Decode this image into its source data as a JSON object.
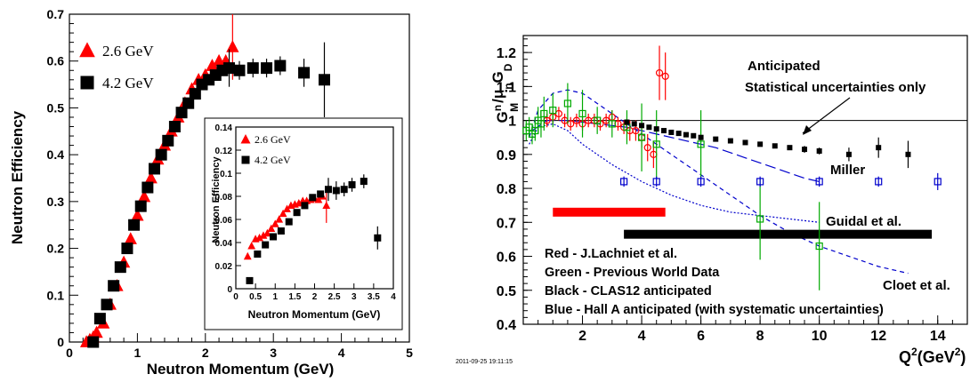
{
  "chart_data": [
    {
      "type": "scatter",
      "xlabel": "Neutron Momentum (GeV)",
      "ylabel": "Neutron Efficiency",
      "xlim": [
        0,
        5
      ],
      "ylim": [
        0,
        0.7
      ],
      "xticks": [
        "0",
        "1",
        "2",
        "3",
        "4",
        "5"
      ],
      "yticks": [
        "0",
        "0.1",
        "0.2",
        "0.3",
        "0.4",
        "0.5",
        "0.6",
        "0.7"
      ],
      "grid": false,
      "legend": "top-left",
      "series": [
        {
          "name": "2.6 GeV",
          "marker": "triangle",
          "color": "#ff0000",
          "x": [
            0.25,
            0.3,
            0.35,
            0.4,
            0.5,
            0.6,
            0.7,
            0.8,
            0.9,
            1.0,
            1.1,
            1.2,
            1.3,
            1.4,
            1.5,
            1.6,
            1.7,
            1.8,
            1.9,
            2.0,
            2.1,
            2.2,
            2.3,
            2.4
          ],
          "y": [
            0.0,
            0.005,
            0.01,
            0.02,
            0.04,
            0.08,
            0.12,
            0.17,
            0.22,
            0.27,
            0.31,
            0.35,
            0.39,
            0.42,
            0.45,
            0.48,
            0.51,
            0.54,
            0.56,
            0.57,
            0.59,
            0.6,
            0.6,
            0.63
          ],
          "err": [
            0,
            0,
            0,
            0,
            0,
            0,
            0,
            0,
            0,
            0,
            0,
            0,
            0,
            0,
            0,
            0,
            0,
            0,
            0,
            0,
            0,
            0,
            0,
            0.07
          ]
        },
        {
          "name": "4.2 GeV",
          "marker": "square",
          "color": "#000000",
          "x": [
            0.35,
            0.45,
            0.55,
            0.65,
            0.75,
            0.85,
            0.95,
            1.05,
            1.15,
            1.25,
            1.35,
            1.45,
            1.55,
            1.65,
            1.75,
            1.85,
            1.95,
            2.05,
            2.15,
            2.25,
            2.35,
            2.5,
            2.7,
            2.9,
            3.1,
            3.45,
            3.75
          ],
          "y": [
            0.0,
            0.05,
            0.08,
            0.12,
            0.16,
            0.2,
            0.25,
            0.29,
            0.33,
            0.37,
            0.4,
            0.43,
            0.46,
            0.49,
            0.51,
            0.53,
            0.55,
            0.56,
            0.57,
            0.58,
            0.585,
            0.58,
            0.585,
            0.585,
            0.59,
            0.575,
            0.56
          ],
          "err": [
            0,
            0,
            0,
            0,
            0,
            0,
            0,
            0,
            0,
            0,
            0,
            0,
            0,
            0,
            0,
            0,
            0,
            0,
            0,
            0,
            0.04,
            0.02,
            0.02,
            0.02,
            0.02,
            0.03,
            0.08
          ]
        }
      ],
      "inset": {
        "xlabel": "Neutron Momentum (GeV)",
        "ylabel": "Neutron Efficiency",
        "xlim": [
          0,
          4
        ],
        "ylim": [
          0,
          0.14
        ],
        "xticks": [
          "0",
          "0.5",
          "1",
          "1.5",
          "2",
          "2.5",
          "3",
          "3.5",
          "4"
        ],
        "yticks": [
          "0",
          "0.02",
          "0.04",
          "0.06",
          "0.08",
          "0.1",
          "0.12",
          "0.14"
        ],
        "series": [
          {
            "name": "2.6 GeV",
            "marker": "triangle",
            "color": "#ff0000",
            "x": [
              0.3,
              0.4,
              0.5,
              0.6,
              0.7,
              0.8,
              0.9,
              1.0,
              1.1,
              1.2,
              1.3,
              1.4,
              1.5,
              1.6,
              1.7,
              1.8,
              1.9,
              2.0,
              2.1,
              2.2,
              2.3
            ],
            "y": [
              0.028,
              0.037,
              0.043,
              0.044,
              0.046,
              0.048,
              0.052,
              0.056,
              0.06,
              0.065,
              0.069,
              0.072,
              0.073,
              0.074,
              0.076,
              0.076,
              0.077,
              0.078,
              0.077,
              0.08,
              0.072
            ],
            "err": [
              0,
              0,
              0,
              0,
              0,
              0,
              0,
              0,
              0,
              0,
              0,
              0,
              0,
              0,
              0,
              0,
              0,
              0,
              0,
              0,
              0.015
            ]
          },
          {
            "name": "4.2 GeV",
            "marker": "square",
            "color": "#000000",
            "x": [
              0.35,
              0.55,
              0.75,
              0.95,
              1.15,
              1.35,
              1.55,
              1.75,
              1.95,
              2.15,
              2.35,
              2.55,
              2.75,
              2.95,
              3.25,
              3.6
            ],
            "y": [
              0.007,
              0.03,
              0.038,
              0.045,
              0.05,
              0.058,
              0.066,
              0.072,
              0.079,
              0.082,
              0.086,
              0.085,
              0.086,
              0.09,
              0.093,
              0.044
            ],
            "err": [
              0,
              0,
              0,
              0,
              0,
              0,
              0,
              0,
              0,
              0,
              0.01,
              0.008,
              0.006,
              0.006,
              0.006,
              0.01
            ]
          }
        ]
      }
    },
    {
      "type": "scatter",
      "ylabel": "G",
      "ylabel_sup": "n",
      "ylabel_sub": "M",
      "ylabel_tail": "/μ",
      "ylabel_tail_sub": "n",
      "ylabel_end": "G",
      "ylabel_end_sub": "D",
      "xlabel": "Q",
      "xlabel_sup": "2",
      "xlabel_tail": "(GeV",
      "xlabel_tail_sup": "2",
      "xlabel_end": ")",
      "xlim": [
        0,
        15
      ],
      "ylim": [
        0.4,
        1.25
      ],
      "xticks": [
        "2",
        "4",
        "6",
        "8",
        "10",
        "12",
        "14"
      ],
      "yticks": [
        "0.4",
        "0.5",
        "0.6",
        "0.7",
        "0.8",
        "0.9",
        "1",
        "1.1",
        "1.2"
      ],
      "grid": false,
      "reference_line_y": 1.0,
      "annotations": {
        "anticipated": "Anticipated",
        "stat_only": "Statistical uncertainties only",
        "miller": "Miller",
        "guidal": "Guidal et al.",
        "cloet": "Cloet et al."
      },
      "legend_text": [
        "Red - J.Lachniet et al.",
        "Green - Previous World Data",
        "Black - CLAS12 anticipated",
        "Blue - Hall A anticipated (with systematic uncertainties)"
      ],
      "bands": [
        {
          "color": "#ff0000",
          "x": [
            1.0,
            4.8
          ],
          "y": 0.73
        },
        {
          "color": "#000000",
          "x": [
            3.4,
            13.8
          ],
          "y": 0.665
        }
      ],
      "series": [
        {
          "name": "Red - J.Lachniet et al.",
          "marker": "circle-open",
          "color": "#ff0000",
          "x": [
            0.8,
            1.0,
            1.2,
            1.4,
            1.6,
            1.8,
            2.0,
            2.2,
            2.4,
            2.6,
            2.8,
            3.0,
            3.2,
            3.4,
            3.6,
            3.8,
            4.0,
            4.2,
            4.4,
            4.6,
            4.8
          ],
          "y": [
            1.0,
            1.01,
            1.02,
            1.0,
            0.99,
            1.0,
            0.99,
            1.0,
            1.0,
            0.99,
            1.0,
            1.01,
            0.99,
            0.98,
            0.97,
            0.97,
            0.95,
            0.92,
            0.9,
            1.14,
            1.13
          ],
          "err": [
            0.02,
            0.02,
            0.02,
            0.02,
            0.02,
            0.02,
            0.02,
            0.02,
            0.02,
            0.02,
            0.02,
            0.02,
            0.02,
            0.02,
            0.03,
            0.03,
            0.03,
            0.04,
            0.04,
            0.08,
            0.07
          ]
        },
        {
          "name": "Green - Previous World Data",
          "marker": "square-open",
          "color": "#00aa00",
          "x": [
            0.1,
            0.2,
            0.3,
            0.4,
            0.5,
            0.6,
            0.7,
            1.0,
            1.5,
            2.0,
            2.5,
            3.0,
            3.5,
            4.0,
            4.5,
            6.0,
            8.0,
            10.0
          ],
          "y": [
            0.97,
            0.98,
            0.96,
            0.97,
            1.0,
            0.99,
            1.02,
            1.03,
            1.05,
            1.02,
            1.0,
            0.99,
            0.98,
            0.95,
            0.93,
            0.93,
            0.71,
            0.63
          ],
          "err": [
            0.03,
            0.03,
            0.03,
            0.03,
            0.04,
            0.04,
            0.05,
            0.05,
            0.06,
            0.07,
            0.04,
            0.04,
            0.05,
            0.1,
            0.1,
            0.1,
            0.12,
            0.13
          ]
        },
        {
          "name": "Black - CLAS12 anticipated",
          "marker": "square",
          "color": "#000000",
          "x": [
            3.5,
            3.75,
            4.0,
            4.25,
            4.5,
            4.75,
            5.0,
            5.25,
            5.5,
            5.75,
            6.0,
            6.5,
            7.0,
            7.5,
            8.0,
            8.5,
            9.0,
            9.5,
            10.0,
            11.0,
            12.0,
            13.0
          ],
          "y": [
            0.995,
            0.99,
            0.985,
            0.98,
            0.975,
            0.97,
            0.965,
            0.962,
            0.958,
            0.955,
            0.95,
            0.945,
            0.94,
            0.935,
            0.93,
            0.925,
            0.92,
            0.915,
            0.91,
            0.9,
            0.92,
            0.9
          ],
          "err": [
            0,
            0,
            0,
            0,
            0,
            0,
            0,
            0,
            0,
            0,
            0,
            0,
            0,
            0,
            0,
            0,
            0,
            0.01,
            0.01,
            0.02,
            0.03,
            0.04
          ]
        },
        {
          "name": "Blue - Hall A anticipated (with systematic uncertainties)",
          "marker": "square-open",
          "color": "#0000cc",
          "x": [
            3.4,
            4.5,
            6.0,
            8.0,
            10.0,
            12.0,
            14.0
          ],
          "y": [
            0.82,
            0.82,
            0.82,
            0.82,
            0.82,
            0.82,
            0.82
          ],
          "err": [
            0.015,
            0.015,
            0.015,
            0.015,
            0.015,
            0.015,
            0.025
          ]
        }
      ],
      "curves": [
        {
          "name": "Miller",
          "style": "long-dash",
          "color": "#0000cc",
          "x": [
            0.3,
            0.8,
            1.5,
            2.5,
            3.5,
            4.5,
            5.5,
            6.5,
            7.5,
            8.5,
            9.5,
            10.0
          ],
          "y": [
            0.97,
            1.0,
            1.0,
            0.99,
            0.98,
            0.96,
            0.94,
            0.92,
            0.89,
            0.86,
            0.83,
            0.82
          ]
        },
        {
          "name": "Guidal et al.",
          "style": "dotted",
          "color": "#0000cc",
          "x": [
            0.2,
            0.5,
            1.0,
            1.5,
            2.0,
            3.0,
            4.0,
            5.0,
            6.0,
            7.0,
            8.0,
            9.0,
            10.0
          ],
          "y": [
            0.93,
            0.98,
            0.99,
            0.97,
            0.93,
            0.87,
            0.82,
            0.78,
            0.75,
            0.73,
            0.72,
            0.71,
            0.7
          ]
        },
        {
          "name": "Cloet et al.",
          "style": "dashed",
          "color": "#0000cc",
          "x": [
            0.2,
            0.5,
            1.0,
            1.5,
            2.0,
            2.5,
            3.0,
            4.0,
            5.0,
            6.0,
            7.0,
            8.0,
            9.0,
            10.0,
            11.0,
            12.0,
            13.0
          ],
          "y": [
            0.95,
            1.03,
            1.08,
            1.09,
            1.08,
            1.05,
            1.02,
            0.96,
            0.9,
            0.84,
            0.78,
            0.72,
            0.67,
            0.63,
            0.6,
            0.57,
            0.55
          ]
        }
      ],
      "timestamp": "2011-09-25 19:11:15"
    }
  ]
}
